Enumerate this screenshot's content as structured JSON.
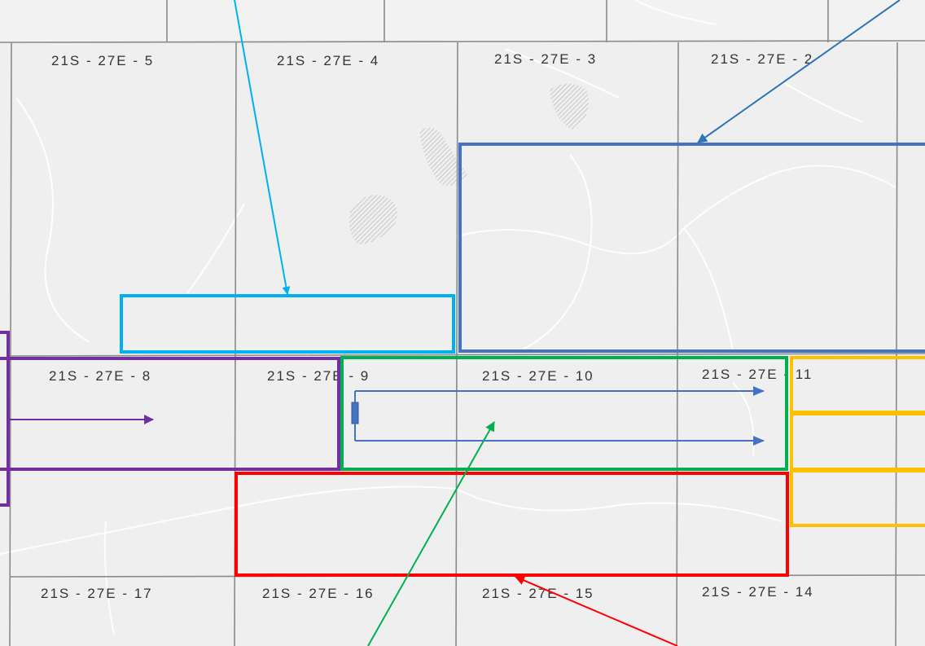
{
  "map": {
    "section_labels": [
      "21S - 27E - 5",
      "21S - 27E - 4",
      "21S - 27E - 3",
      "21S - 27E - 2",
      "21S - 27E - 8",
      "21S - 27E - 9",
      "21S - 27E - 10",
      "21S - 27E - 11",
      "21S - 27E - 17",
      "21S - 27E - 16",
      "21S - 27E - 15",
      "21S - 27E - 14"
    ],
    "colors": {
      "background": "#efefef",
      "section_line": "#8a8a8a",
      "road": "#ffffff",
      "hatch": "#cfcfcf",
      "light_blue": "#00b0f0",
      "blue": "#4472c4",
      "purple": "#7030a0",
      "green": "#00b050",
      "yellow": "#ffc000",
      "red": "#ff0000",
      "dark_blue_arrow": "#2e75b6"
    }
  }
}
